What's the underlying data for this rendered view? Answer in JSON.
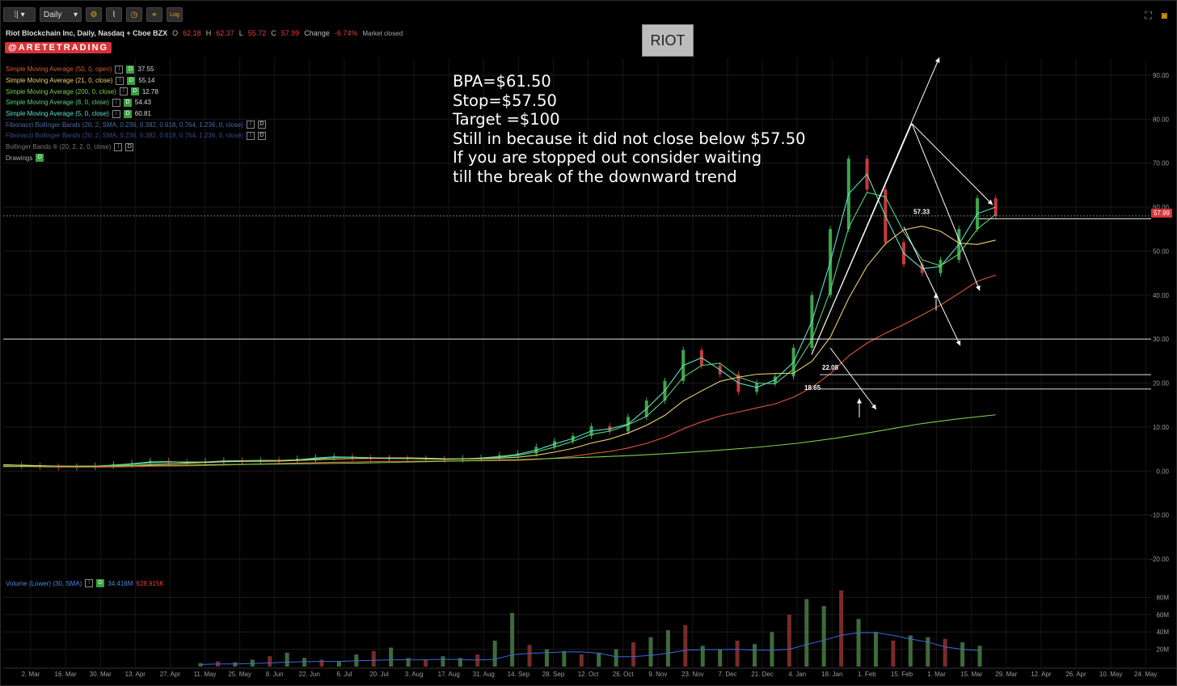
{
  "toolbar": {
    "chart_style_label": "⁞|",
    "interval": "Daily",
    "log_label": "Log"
  },
  "symbol": {
    "name": "Riot Blockchain Inc, Daily, Nasdaq + Cboe BZX",
    "open_label": "O",
    "open": "62.18",
    "high_label": "H",
    "high": "62.37",
    "low_label": "L",
    "low": "55.72",
    "close_label": "C",
    "close": "57.99",
    "change_label": "Change",
    "change": "-6.74%",
    "status": "Market closed"
  },
  "brand": "@ARETETRADING",
  "indicators": [
    {
      "label": "Simple Moving Average (50, 0, open)",
      "value": "37.55",
      "color": "#e0553a"
    },
    {
      "label": "Simple Moving Average (21, 0, close)",
      "value": "55.14",
      "color": "#e8d070"
    },
    {
      "label": "Simple Moving Average (200, 0, close)",
      "value": "12.78",
      "color": "#7ad04a"
    },
    {
      "label": "Simple Moving Average (8, 0, close)",
      "value": "54.43",
      "color": "#5ad07a"
    },
    {
      "label": "Simple Moving Average (5, 0, close)",
      "value": "60.81",
      "color": "#5ae0c8"
    },
    {
      "label": "Fibonacci Bollinger Bands (20, 2, SMA, 0.236, 0.382, 0.618, 0.764, 1.236, 0, close)",
      "value": "",
      "color": "#4a6aa8"
    },
    {
      "label": "Fibonacci Bollinger Bands (20, 2, SMA, 0.236, 0.382, 0.618, 0.764, 1.236, 0, close)",
      "value": "",
      "color": "#3a4a88"
    },
    {
      "label": "Bollinger Bands ® (20, 2, 2, 0, close)",
      "value": "",
      "color": "#777777"
    },
    {
      "label": "Drawings",
      "value": "",
      "color": "#aaaaaa"
    }
  ],
  "ticker_box": "RIOT",
  "notes": [
    "BPA=$61.50",
    "Stop=$57.50",
    "Target =$100",
    "Still in because it did not close below $57.50",
    "If you are stopped out consider waiting",
    "till the break of the downward trend"
  ],
  "price_badge": "57.99",
  "volume_legend": {
    "label": "Volume (Lower) (30, SMA)",
    "sma": "34.416M",
    "volume": "628.915K"
  },
  "chart_data": {
    "type": "candlestick",
    "y_ticks": [
      "90.00",
      "80.00",
      "70.00",
      "60.00",
      "50.00",
      "40.00",
      "30.00",
      "20.00",
      "10.00",
      "0.00",
      "-10.00",
      "-20.00"
    ],
    "ylim": [
      -20,
      92
    ],
    "x_ticks": [
      "2. Mar",
      "16. Mar",
      "30. Mar",
      "13. Apr",
      "27. Apr",
      "11. May",
      "25. May",
      "8. Jun",
      "22. Jun",
      "6. Jul",
      "20. Jul",
      "3. Aug",
      "17. Aug",
      "31. Aug",
      "14. Sep",
      "28. Sep",
      "12. Oct",
      "26. Oct",
      "9. Nov",
      "23. Nov",
      "7. Dec",
      "21. Dec",
      "4. Jan",
      "18. Jan",
      "1. Feb",
      "15. Feb",
      "1. Mar",
      "15. Mar",
      "29. Mar",
      "12. Apr",
      "26. Apr",
      "10. May",
      "24. May"
    ],
    "annotations": [
      "22.08",
      "18.65",
      "57.33"
    ],
    "horizontal_levels": [
      57.33,
      30,
      21.9,
      18.65
    ],
    "price_series": [
      1.4,
      1.2,
      1.0,
      0.9,
      1.0,
      1.2,
      1.5,
      1.8,
      2.3,
      2.0,
      1.9,
      2.2,
      2.4,
      2.3,
      2.5,
      2.3,
      2.8,
      3.1,
      3.3,
      3.0,
      2.8,
      2.9,
      2.8,
      2.7,
      2.6,
      2.9,
      3.0,
      3.6,
      4.0,
      5.5,
      6.8,
      8.0,
      10.2,
      9.0,
      12.3,
      16.0,
      20.5,
      27.5,
      24.0,
      22.0,
      18.0,
      20.0,
      21.5,
      28.0,
      40.0,
      55.0,
      71.0,
      64.0,
      52.0,
      47.0,
      45.0,
      48.0,
      55.0,
      62.0,
      57.99
    ],
    "sma200_series": [
      1.0,
      1.1,
      1.1,
      1.2,
      1.3,
      1.4,
      1.5,
      1.6,
      1.7,
      1.8,
      2.0,
      2.2,
      2.4,
      2.6,
      2.9,
      3.2,
      3.6,
      4.1,
      4.7,
      5.4,
      6.3,
      7.5,
      9.0,
      10.6,
      11.8,
      12.78
    ],
    "volume_series_M": [
      4,
      6,
      5,
      8,
      12,
      16,
      10,
      8,
      6,
      14,
      18,
      22,
      10,
      8,
      12,
      10,
      14,
      30,
      62,
      25,
      20,
      18,
      14,
      16,
      20,
      28,
      34,
      42,
      48,
      24,
      20,
      30,
      26,
      40,
      60,
      78,
      70,
      88,
      55,
      40,
      30,
      36,
      34,
      32,
      28,
      24
    ]
  }
}
